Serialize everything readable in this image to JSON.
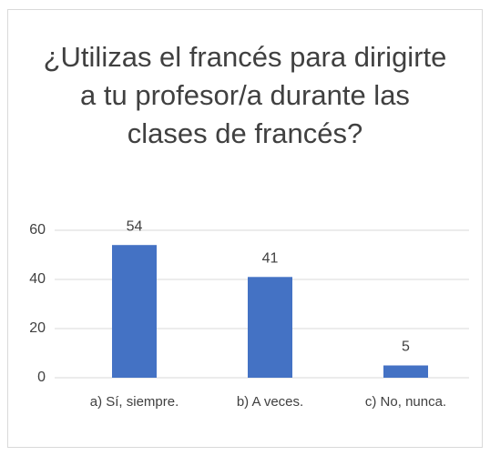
{
  "chart_data": {
    "type": "bar",
    "title": "¿Utilizas el francés para dirigirte a tu profesor/a durante las clases de francés?",
    "categories": [
      "a) Sí, siempre.",
      "b) A veces.",
      "c) No, nunca."
    ],
    "values": [
      54,
      41,
      5
    ],
    "color": "#4472c4",
    "ylim": [
      0,
      60
    ],
    "yticks": [
      0,
      20,
      40,
      60
    ],
    "grid": true
  }
}
